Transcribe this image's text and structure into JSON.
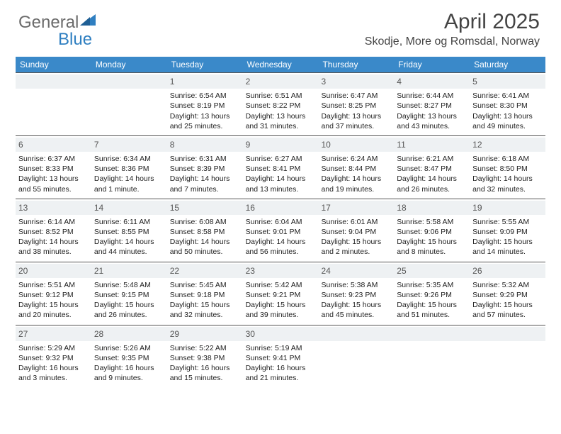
{
  "logo": {
    "part1": "General",
    "part2": "Blue"
  },
  "title": "April 2025",
  "location": "Skodje, More og Romsdal, Norway",
  "colors": {
    "header_bg": "#3a89c9",
    "header_text": "#ffffff",
    "daynum_bg": "#eef1f3",
    "border": "#555555",
    "text": "#222222",
    "logo_gray": "#6b6b6b",
    "logo_blue": "#2f7fc1"
  },
  "day_headers": [
    "Sunday",
    "Monday",
    "Tuesday",
    "Wednesday",
    "Thursday",
    "Friday",
    "Saturday"
  ],
  "weeks": [
    [
      {
        "n": "",
        "lines": []
      },
      {
        "n": "",
        "lines": []
      },
      {
        "n": "1",
        "lines": [
          "Sunrise: 6:54 AM",
          "Sunset: 8:19 PM",
          "Daylight: 13 hours and 25 minutes."
        ]
      },
      {
        "n": "2",
        "lines": [
          "Sunrise: 6:51 AM",
          "Sunset: 8:22 PM",
          "Daylight: 13 hours and 31 minutes."
        ]
      },
      {
        "n": "3",
        "lines": [
          "Sunrise: 6:47 AM",
          "Sunset: 8:25 PM",
          "Daylight: 13 hours and 37 minutes."
        ]
      },
      {
        "n": "4",
        "lines": [
          "Sunrise: 6:44 AM",
          "Sunset: 8:27 PM",
          "Daylight: 13 hours and 43 minutes."
        ]
      },
      {
        "n": "5",
        "lines": [
          "Sunrise: 6:41 AM",
          "Sunset: 8:30 PM",
          "Daylight: 13 hours and 49 minutes."
        ]
      }
    ],
    [
      {
        "n": "6",
        "lines": [
          "Sunrise: 6:37 AM",
          "Sunset: 8:33 PM",
          "Daylight: 13 hours and 55 minutes."
        ]
      },
      {
        "n": "7",
        "lines": [
          "Sunrise: 6:34 AM",
          "Sunset: 8:36 PM",
          "Daylight: 14 hours and 1 minute."
        ]
      },
      {
        "n": "8",
        "lines": [
          "Sunrise: 6:31 AM",
          "Sunset: 8:39 PM",
          "Daylight: 14 hours and 7 minutes."
        ]
      },
      {
        "n": "9",
        "lines": [
          "Sunrise: 6:27 AM",
          "Sunset: 8:41 PM",
          "Daylight: 14 hours and 13 minutes."
        ]
      },
      {
        "n": "10",
        "lines": [
          "Sunrise: 6:24 AM",
          "Sunset: 8:44 PM",
          "Daylight: 14 hours and 19 minutes."
        ]
      },
      {
        "n": "11",
        "lines": [
          "Sunrise: 6:21 AM",
          "Sunset: 8:47 PM",
          "Daylight: 14 hours and 26 minutes."
        ]
      },
      {
        "n": "12",
        "lines": [
          "Sunrise: 6:18 AM",
          "Sunset: 8:50 PM",
          "Daylight: 14 hours and 32 minutes."
        ]
      }
    ],
    [
      {
        "n": "13",
        "lines": [
          "Sunrise: 6:14 AM",
          "Sunset: 8:52 PM",
          "Daylight: 14 hours and 38 minutes."
        ]
      },
      {
        "n": "14",
        "lines": [
          "Sunrise: 6:11 AM",
          "Sunset: 8:55 PM",
          "Daylight: 14 hours and 44 minutes."
        ]
      },
      {
        "n": "15",
        "lines": [
          "Sunrise: 6:08 AM",
          "Sunset: 8:58 PM",
          "Daylight: 14 hours and 50 minutes."
        ]
      },
      {
        "n": "16",
        "lines": [
          "Sunrise: 6:04 AM",
          "Sunset: 9:01 PM",
          "Daylight: 14 hours and 56 minutes."
        ]
      },
      {
        "n": "17",
        "lines": [
          "Sunrise: 6:01 AM",
          "Sunset: 9:04 PM",
          "Daylight: 15 hours and 2 minutes."
        ]
      },
      {
        "n": "18",
        "lines": [
          "Sunrise: 5:58 AM",
          "Sunset: 9:06 PM",
          "Daylight: 15 hours and 8 minutes."
        ]
      },
      {
        "n": "19",
        "lines": [
          "Sunrise: 5:55 AM",
          "Sunset: 9:09 PM",
          "Daylight: 15 hours and 14 minutes."
        ]
      }
    ],
    [
      {
        "n": "20",
        "lines": [
          "Sunrise: 5:51 AM",
          "Sunset: 9:12 PM",
          "Daylight: 15 hours and 20 minutes."
        ]
      },
      {
        "n": "21",
        "lines": [
          "Sunrise: 5:48 AM",
          "Sunset: 9:15 PM",
          "Daylight: 15 hours and 26 minutes."
        ]
      },
      {
        "n": "22",
        "lines": [
          "Sunrise: 5:45 AM",
          "Sunset: 9:18 PM",
          "Daylight: 15 hours and 32 minutes."
        ]
      },
      {
        "n": "23",
        "lines": [
          "Sunrise: 5:42 AM",
          "Sunset: 9:21 PM",
          "Daylight: 15 hours and 39 minutes."
        ]
      },
      {
        "n": "24",
        "lines": [
          "Sunrise: 5:38 AM",
          "Sunset: 9:23 PM",
          "Daylight: 15 hours and 45 minutes."
        ]
      },
      {
        "n": "25",
        "lines": [
          "Sunrise: 5:35 AM",
          "Sunset: 9:26 PM",
          "Daylight: 15 hours and 51 minutes."
        ]
      },
      {
        "n": "26",
        "lines": [
          "Sunrise: 5:32 AM",
          "Sunset: 9:29 PM",
          "Daylight: 15 hours and 57 minutes."
        ]
      }
    ],
    [
      {
        "n": "27",
        "lines": [
          "Sunrise: 5:29 AM",
          "Sunset: 9:32 PM",
          "Daylight: 16 hours and 3 minutes."
        ]
      },
      {
        "n": "28",
        "lines": [
          "Sunrise: 5:26 AM",
          "Sunset: 9:35 PM",
          "Daylight: 16 hours and 9 minutes."
        ]
      },
      {
        "n": "29",
        "lines": [
          "Sunrise: 5:22 AM",
          "Sunset: 9:38 PM",
          "Daylight: 16 hours and 15 minutes."
        ]
      },
      {
        "n": "30",
        "lines": [
          "Sunrise: 5:19 AM",
          "Sunset: 9:41 PM",
          "Daylight: 16 hours and 21 minutes."
        ]
      },
      {
        "n": "",
        "lines": []
      },
      {
        "n": "",
        "lines": []
      },
      {
        "n": "",
        "lines": []
      }
    ]
  ]
}
